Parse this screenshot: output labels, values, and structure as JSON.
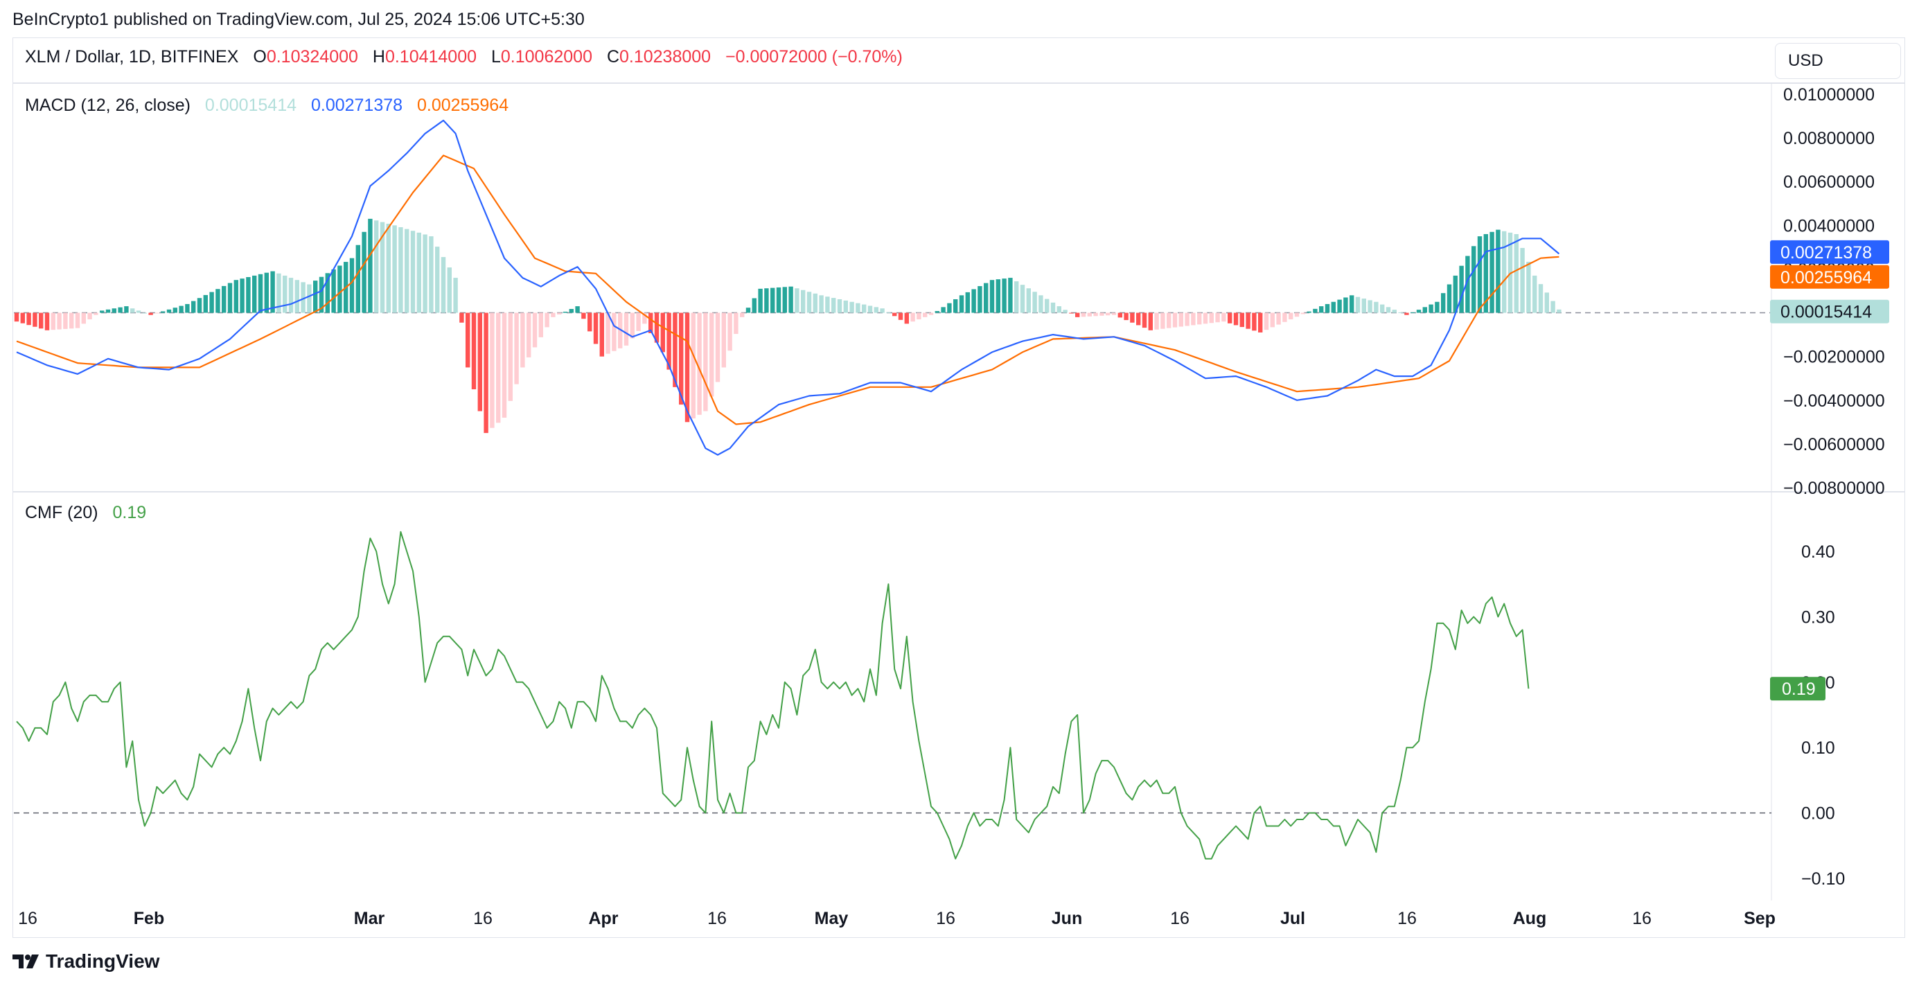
{
  "attribution": "BeInCrypto1 published on TradingView.com, Jul 25, 2024 15:06 UTC+5:30",
  "header": {
    "symbol": "XLM / Dollar, 1D, BITFINEX",
    "open_label": "O",
    "open": "0.10324000",
    "high_label": "H",
    "high": "0.10414000",
    "low_label": "L",
    "low": "0.10062000",
    "close_label": "C",
    "close": "0.10238000",
    "change": "−0.00072000 (−0.70%)"
  },
  "currency_selector": "USD",
  "macd_legend": {
    "title": "MACD (12, 26, close)",
    "histogram": "0.00015414",
    "macd": "0.00271378",
    "signal": "0.00255964"
  },
  "cmf_legend": {
    "title": "CMF (20)",
    "value": "0.19"
  },
  "price_badges": {
    "macd": "0.00271378",
    "signal": "0.00255964",
    "histogram": "0.00015414",
    "cmf": "0.19"
  },
  "macd_axis": [
    "0.01000000",
    "0.00800000",
    "0.00600000",
    "0.00400000",
    "0.00200000",
    "0.00000000",
    "−0.00200000",
    "−0.00400000",
    "−0.00600000",
    "−0.00800000"
  ],
  "cmf_axis": [
    "0.40",
    "0.30",
    "0.20",
    "0.10",
    "0.00",
    "−0.10"
  ],
  "time_axis": [
    "16",
    "Feb",
    "Mar",
    "16",
    "Apr",
    "16",
    "May",
    "16",
    "Jun",
    "16",
    "Jul",
    "16",
    "Aug",
    "16",
    "Sep"
  ],
  "colors": {
    "macd": "#2962ff",
    "signal": "#ff6d00",
    "hist_up_strong": "#26a69a",
    "hist_up_weak": "#b2dfdb",
    "hist_down_strong": "#ff5252",
    "hist_down_weak": "#ffcdd2",
    "cmf": "#43a047",
    "price_down": "#f23645"
  },
  "footer": {
    "brand": "TradingView"
  },
  "chart_data": [
    {
      "type": "line",
      "title": "MACD (12, 26, close)",
      "x_range": [
        "2024-01-16",
        "2024-07-25"
      ],
      "ylim": [
        -0.008,
        0.01
      ],
      "series": [
        {
          "name": "MACD",
          "keyframes": [
            [
              0,
              -0.0018
            ],
            [
              5,
              -0.0024
            ],
            [
              10,
              -0.0028
            ],
            [
              15,
              -0.0021
            ],
            [
              20,
              -0.0025
            ],
            [
              25,
              -0.0026
            ],
            [
              30,
              -0.0021
            ],
            [
              35,
              -0.0012
            ],
            [
              40,
              0.0001
            ],
            [
              45,
              0.0004
            ],
            [
              50,
              0.001
            ],
            [
              55,
              0.0035
            ],
            [
              58,
              0.0058
            ],
            [
              61,
              0.0065
            ],
            [
              64,
              0.0073
            ],
            [
              67,
              0.0082
            ],
            [
              70,
              0.0088
            ],
            [
              72,
              0.0082
            ],
            [
              74,
              0.0065
            ],
            [
              77,
              0.0045
            ],
            [
              80,
              0.0025
            ],
            [
              83,
              0.0016
            ],
            [
              86,
              0.0012
            ],
            [
              89,
              0.0017
            ],
            [
              92,
              0.0021
            ],
            [
              95,
              0.0011
            ],
            [
              98,
              -0.0006
            ],
            [
              101,
              -0.0011
            ],
            [
              104,
              -0.0008
            ],
            [
              107,
              -0.0024
            ],
            [
              110,
              -0.0045
            ],
            [
              113,
              -0.0062
            ],
            [
              115,
              -0.0065
            ],
            [
              117,
              -0.0062
            ],
            [
              120,
              -0.0052
            ],
            [
              125,
              -0.0042
            ],
            [
              130,
              -0.0038
            ],
            [
              135,
              -0.0037
            ],
            [
              140,
              -0.0032
            ],
            [
              145,
              -0.0032
            ],
            [
              150,
              -0.0036
            ],
            [
              155,
              -0.0026
            ],
            [
              160,
              -0.0018
            ],
            [
              165,
              -0.0013
            ],
            [
              170,
              -0.001
            ],
            [
              175,
              -0.0012
            ],
            [
              180,
              -0.0011
            ],
            [
              185,
              -0.0015
            ],
            [
              190,
              -0.0022
            ],
            [
              195,
              -0.003
            ],
            [
              200,
              -0.0029
            ],
            [
              205,
              -0.0034
            ],
            [
              210,
              -0.004
            ],
            [
              215,
              -0.0038
            ],
            [
              220,
              -0.0031
            ],
            [
              223,
              -0.0026
            ],
            [
              226,
              -0.0029
            ],
            [
              229,
              -0.0029
            ],
            [
              232,
              -0.0024
            ],
            [
              235,
              -0.0008
            ],
            [
              238,
              0.0015
            ],
            [
              241,
              0.0028
            ],
            [
              244,
              0.003
            ],
            [
              247,
              0.0034
            ],
            [
              250,
              0.0034
            ],
            [
              253,
              0.0027
            ]
          ]
        },
        {
          "name": "Signal",
          "keyframes": [
            [
              0,
              -0.0013
            ],
            [
              10,
              -0.0023
            ],
            [
              20,
              -0.0025
            ],
            [
              30,
              -0.0025
            ],
            [
              40,
              -0.0012
            ],
            [
              50,
              0.0002
            ],
            [
              55,
              0.0014
            ],
            [
              60,
              0.0035
            ],
            [
              65,
              0.0055
            ],
            [
              70,
              0.0072
            ],
            [
              75,
              0.0066
            ],
            [
              80,
              0.0045
            ],
            [
              85,
              0.0025
            ],
            [
              90,
              0.0019
            ],
            [
              95,
              0.0018
            ],
            [
              100,
              0.0005
            ],
            [
              105,
              -0.0005
            ],
            [
              110,
              -0.0013
            ],
            [
              115,
              -0.0045
            ],
            [
              118,
              -0.0051
            ],
            [
              122,
              -0.005
            ],
            [
              130,
              -0.0042
            ],
            [
              140,
              -0.0034
            ],
            [
              150,
              -0.0034
            ],
            [
              160,
              -0.0026
            ],
            [
              165,
              -0.0018
            ],
            [
              170,
              -0.0012
            ],
            [
              180,
              -0.0011
            ],
            [
              190,
              -0.0017
            ],
            [
              200,
              -0.0027
            ],
            [
              210,
              -0.0036
            ],
            [
              220,
              -0.0034
            ],
            [
              230,
              -0.003
            ],
            [
              235,
              -0.0022
            ],
            [
              240,
              0.0002
            ],
            [
              245,
              0.0018
            ],
            [
              250,
              0.0025
            ],
            [
              253,
              0.00256
            ]
          ]
        },
        {
          "name": "Histogram",
          "keyframes": [
            [
              0,
              -0.0004
            ],
            [
              5,
              -0.0008
            ],
            [
              10,
              -0.0007
            ],
            [
              14,
              0.0001
            ],
            [
              18,
              0.0003
            ],
            [
              22,
              -0.0001
            ],
            [
              28,
              0.0004
            ],
            [
              36,
              0.0015
            ],
            [
              42,
              0.0019
            ],
            [
              48,
              0.0013
            ],
            [
              55,
              0.0025
            ],
            [
              58,
              0.0043
            ],
            [
              62,
              0.004
            ],
            [
              68,
              0.0035
            ],
            [
              72,
              0.0016
            ],
            [
              74,
              -0.0025
            ],
            [
              77,
              -0.0055
            ],
            [
              80,
              -0.0048
            ],
            [
              83,
              -0.0025
            ],
            [
              88,
              -0.0002
            ],
            [
              92,
              0.0003
            ],
            [
              96,
              -0.002
            ],
            [
              100,
              -0.0015
            ],
            [
              103,
              -0.0005
            ],
            [
              106,
              -0.0018
            ],
            [
              110,
              -0.005
            ],
            [
              113,
              -0.0045
            ],
            [
              116,
              -0.0025
            ],
            [
              119,
              -0.0002
            ],
            [
              122,
              0.0011
            ],
            [
              127,
              0.0012
            ],
            [
              132,
              0.0008
            ],
            [
              137,
              0.0005
            ],
            [
              142,
              0.0002
            ],
            [
              146,
              -0.0005
            ],
            [
              150,
              -0.0001
            ],
            [
              155,
              0.0008
            ],
            [
              160,
              0.0015
            ],
            [
              163,
              0.0016
            ],
            [
              168,
              0.0008
            ],
            [
              174,
              -0.0002
            ],
            [
              180,
              -0.0001
            ],
            [
              186,
              -0.0008
            ],
            [
              192,
              -0.0006
            ],
            [
              198,
              -0.0004
            ],
            [
              204,
              -0.0009
            ],
            [
              209,
              -0.0003
            ],
            [
              214,
              0.0003
            ],
            [
              219,
              0.0008
            ],
            [
              223,
              0.0005
            ],
            [
              228,
              -0.0001
            ],
            [
              233,
              0.0005
            ],
            [
              236,
              0.0017
            ],
            [
              240,
              0.0035
            ],
            [
              243,
              0.0038
            ],
            [
              246,
              0.0036
            ],
            [
              249,
              0.0017
            ],
            [
              253,
              0.00015
            ]
          ]
        }
      ]
    },
    {
      "type": "line",
      "title": "CMF (20)",
      "x_range": [
        "2024-01-16",
        "2024-07-25"
      ],
      "ylim": [
        -0.14,
        0.46
      ],
      "series": [
        {
          "name": "CMF",
          "values": [
            0.14,
            0.13,
            0.11,
            0.13,
            0.13,
            0.12,
            0.17,
            0.18,
            0.2,
            0.16,
            0.14,
            0.17,
            0.18,
            0.18,
            0.17,
            0.17,
            0.19,
            0.2,
            0.07,
            0.11,
            0.02,
            -0.02,
            0.0,
            0.04,
            0.03,
            0.04,
            0.05,
            0.03,
            0.02,
            0.04,
            0.09,
            0.08,
            0.07,
            0.09,
            0.1,
            0.09,
            0.11,
            0.14,
            0.19,
            0.13,
            0.08,
            0.14,
            0.16,
            0.15,
            0.16,
            0.17,
            0.16,
            0.17,
            0.21,
            0.22,
            0.25,
            0.26,
            0.25,
            0.26,
            0.27,
            0.28,
            0.3,
            0.37,
            0.42,
            0.4,
            0.35,
            0.32,
            0.35,
            0.43,
            0.4,
            0.37,
            0.3,
            0.2,
            0.23,
            0.26,
            0.27,
            0.27,
            0.26,
            0.25,
            0.21,
            0.25,
            0.23,
            0.21,
            0.22,
            0.25,
            0.24,
            0.22,
            0.2,
            0.2,
            0.19,
            0.17,
            0.15,
            0.13,
            0.14,
            0.17,
            0.16,
            0.13,
            0.17,
            0.17,
            0.16,
            0.14,
            0.21,
            0.19,
            0.16,
            0.14,
            0.14,
            0.13,
            0.15,
            0.16,
            0.15,
            0.13,
            0.03,
            0.02,
            0.01,
            0.02,
            0.1,
            0.05,
            0.01,
            0.0,
            0.14,
            0.02,
            0.0,
            0.03,
            0.0,
            0.0,
            0.07,
            0.08,
            0.14,
            0.12,
            0.15,
            0.13,
            0.2,
            0.19,
            0.15,
            0.21,
            0.22,
            0.25,
            0.2,
            0.19,
            0.2,
            0.19,
            0.2,
            0.18,
            0.19,
            0.17,
            0.22,
            0.18,
            0.29,
            0.35,
            0.22,
            0.19,
            0.27,
            0.17,
            0.11,
            0.06,
            0.01,
            0.0,
            -0.02,
            -0.04,
            -0.07,
            -0.05,
            -0.02,
            0.0,
            -0.02,
            -0.01,
            -0.01,
            -0.02,
            0.02,
            0.1,
            -0.01,
            -0.02,
            -0.03,
            -0.01,
            0.0,
            0.01,
            0.04,
            0.03,
            0.09,
            0.14,
            0.15,
            0.0,
            0.02,
            0.06,
            0.08,
            0.08,
            0.07,
            0.05,
            0.03,
            0.02,
            0.04,
            0.05,
            0.04,
            0.05,
            0.03,
            0.03,
            0.04,
            0.0,
            -0.02,
            -0.03,
            -0.04,
            -0.07,
            -0.07,
            -0.05,
            -0.04,
            -0.03,
            -0.02,
            -0.03,
            -0.04,
            0.0,
            0.01,
            -0.02,
            -0.02,
            -0.02,
            -0.01,
            -0.02,
            -0.01,
            -0.01,
            0.0,
            0.0,
            -0.01,
            -0.01,
            -0.02,
            -0.02,
            -0.05,
            -0.03,
            -0.01,
            -0.02,
            -0.03,
            -0.06,
            0.0,
            0.01,
            0.01,
            0.05,
            0.1,
            0.1,
            0.11,
            0.17,
            0.22,
            0.29,
            0.29,
            0.28,
            0.25,
            0.31,
            0.29,
            0.3,
            0.29,
            0.32,
            0.33,
            0.3,
            0.32,
            0.29,
            0.27,
            0.28,
            0.19
          ]
        }
      ]
    }
  ]
}
